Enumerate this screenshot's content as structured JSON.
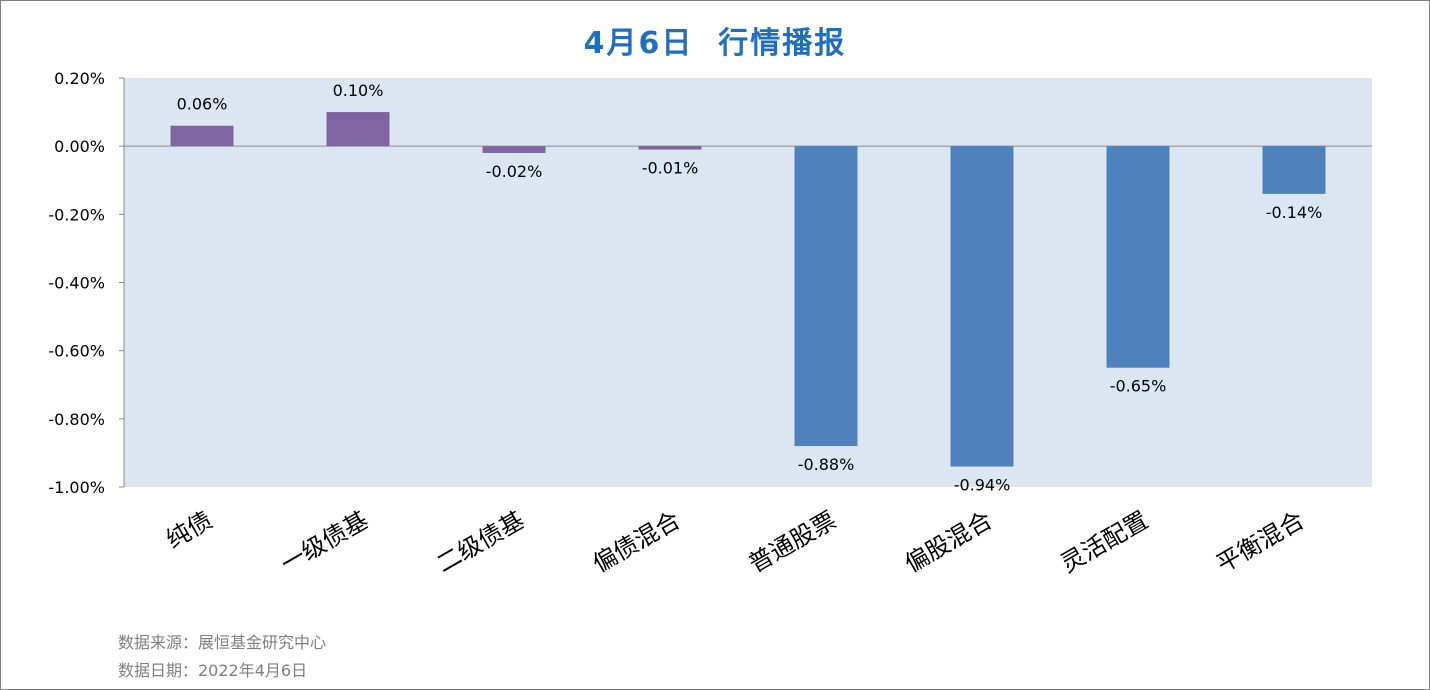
{
  "title": "4月6日  行情播报",
  "footer": {
    "source": "数据来源：展恒基金研究中心",
    "date": "数据日期：2022年4月6日"
  },
  "colors": {
    "plot_bg": "#dce6f2",
    "bond_bar": "#8064a2",
    "equity_bar": "#4f81bd",
    "title": "#1f6fc0",
    "footer_text": "#7f7f7f"
  },
  "chart_data": {
    "type": "bar",
    "categories": [
      "纯债",
      "一级债基",
      "二级债基",
      "偏债混合",
      "普通股票",
      "偏股混合",
      "灵活配置",
      "平衡混合"
    ],
    "values": [
      0.06,
      0.1,
      -0.02,
      -0.01,
      -0.88,
      -0.94,
      -0.65,
      -0.14
    ],
    "value_labels": [
      "0.06%",
      "0.10%",
      "-0.02%",
      "-0.01%",
      "-0.88%",
      "-0.94%",
      "-0.65%",
      "-0.14%"
    ],
    "bar_colors": [
      "#8064a2",
      "#8064a2",
      "#8064a2",
      "#8064a2",
      "#4f81bd",
      "#4f81bd",
      "#4f81bd",
      "#4f81bd"
    ],
    "ylim": [
      -1.0,
      0.2
    ],
    "yticks": [
      0.2,
      0.0,
      -0.2,
      -0.4,
      -0.6,
      -0.8,
      -1.0
    ],
    "ytick_labels": [
      "0.20%",
      "0.00%",
      "-0.20%",
      "-0.40%",
      "-0.60%",
      "-0.80%",
      "-1.00%"
    ],
    "grid": false,
    "legend": "none"
  }
}
